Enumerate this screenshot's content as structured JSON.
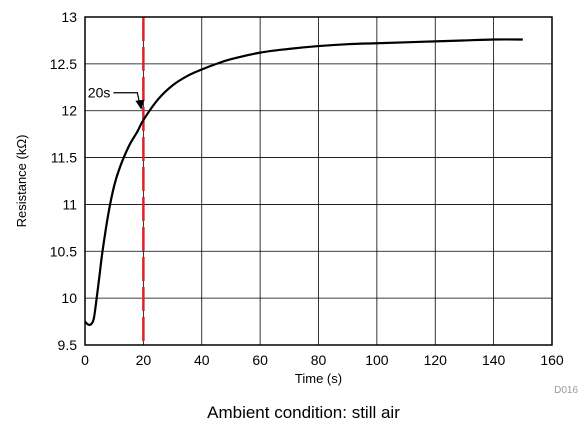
{
  "chart_data": {
    "type": "line",
    "title": "",
    "xlabel": "Time (s)",
    "ylabel": "Resistance (kΩ)",
    "xlim": [
      0,
      160
    ],
    "ylim": [
      9.5,
      13
    ],
    "xticks": [
      0,
      20,
      40,
      60,
      80,
      100,
      120,
      140,
      160
    ],
    "yticks": [
      9.5,
      10,
      10.5,
      11,
      11.5,
      12,
      12.5,
      13
    ],
    "grid": true,
    "series": [
      {
        "x": [
          0,
          1,
          2,
          3,
          4,
          5,
          6,
          8,
          10,
          12,
          15,
          18,
          20,
          25,
          30,
          35,
          40,
          45,
          50,
          60,
          70,
          80,
          90,
          100,
          110,
          120,
          130,
          140,
          150
        ],
        "y": [
          9.75,
          9.72,
          9.72,
          9.78,
          10.0,
          10.25,
          10.5,
          10.9,
          11.2,
          11.4,
          11.62,
          11.78,
          11.9,
          12.12,
          12.27,
          12.37,
          12.44,
          12.5,
          12.55,
          12.62,
          12.66,
          12.69,
          12.71,
          12.72,
          12.73,
          12.74,
          12.75,
          12.76,
          12.76
        ],
        "color": "#000000"
      }
    ],
    "reference_line": {
      "x": 20,
      "color": "#e0202a",
      "style": "dashed"
    },
    "annotation": {
      "text": "20s",
      "x": 20,
      "y": 12.0
    },
    "code": "D016",
    "caption": "Ambient condition: still air"
  }
}
